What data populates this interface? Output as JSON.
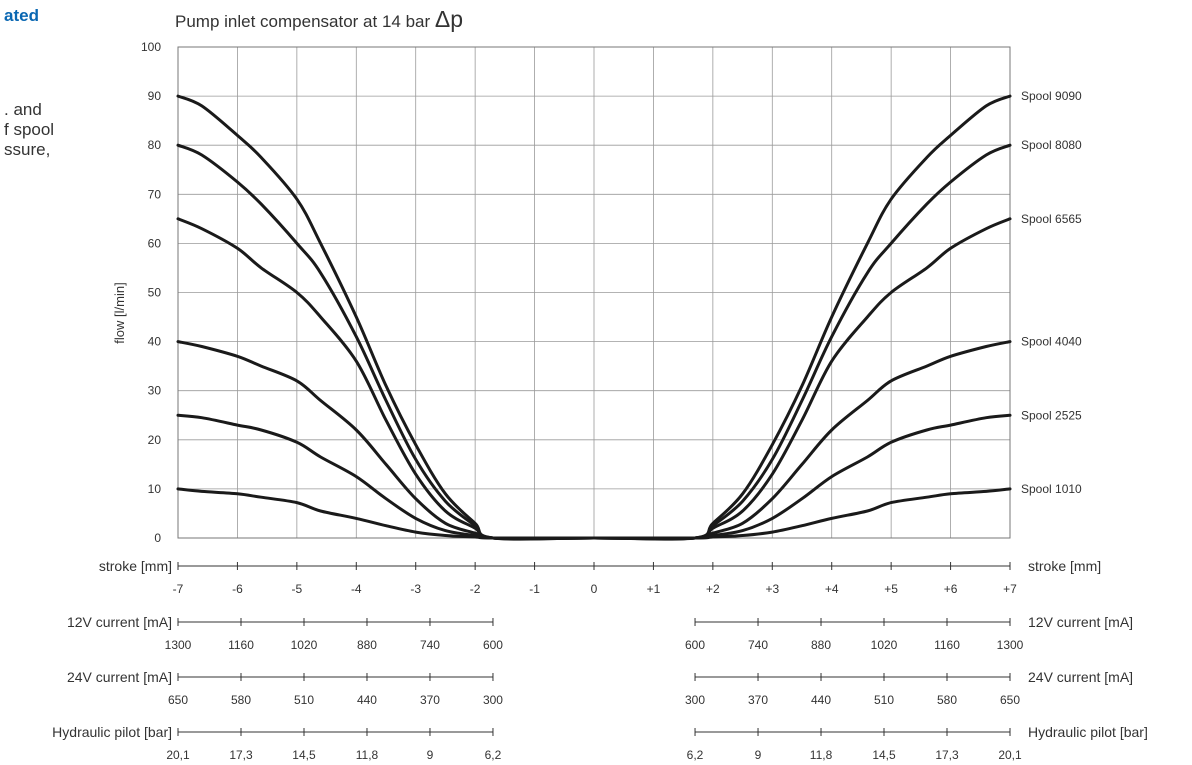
{
  "side_text": {
    "heading": "ated",
    "lines": [
      ". and",
      "f spool",
      "ssure,"
    ]
  },
  "chart_data": {
    "type": "line",
    "title": "Pump inlet compensator at 14 bar",
    "title_symbol": "Δp",
    "ylabel": "flow [l/min]",
    "ylim": [
      0,
      100
    ],
    "yticks": [
      "0",
      "10",
      "20",
      "30",
      "40",
      "50",
      "60",
      "70",
      "80",
      "90",
      "100"
    ],
    "xlim": [
      -7,
      7
    ],
    "grid": true,
    "x": [
      -7,
      -6.6,
      -6,
      -5.6,
      -5,
      -4.6,
      -4,
      -3.5,
      -3,
      -2.5,
      -2,
      -1.7,
      0,
      1.7,
      2,
      2.5,
      3,
      3.5,
      4,
      4.6,
      5,
      5.6,
      6,
      6.6,
      7
    ],
    "series": [
      {
        "name": "Spool 9090",
        "values": [
          90,
          88,
          82,
          77.5,
          69,
          60,
          45,
          31,
          19,
          9,
          3,
          0,
          0,
          0,
          3,
          9,
          19,
          31,
          45,
          60,
          69,
          77.5,
          82,
          88,
          90
        ]
      },
      {
        "name": "Spool 8080",
        "values": [
          80,
          78,
          72.5,
          68,
          60,
          54,
          41,
          28,
          16,
          7.5,
          2.5,
          0,
          0,
          0,
          2.5,
          7.5,
          16,
          28,
          41,
          54,
          60,
          68,
          72.5,
          78,
          80
        ]
      },
      {
        "name": "Spool 6565",
        "values": [
          65,
          63,
          59,
          55,
          50,
          45,
          36,
          24,
          13,
          5.5,
          2,
          0,
          0,
          0,
          2,
          5.5,
          13,
          24,
          36,
          45,
          50,
          55,
          59,
          63,
          65
        ]
      },
      {
        "name": "Spool 4040",
        "values": [
          40,
          39,
          37,
          35,
          32,
          28,
          22,
          15,
          8,
          3,
          1,
          0,
          0,
          0,
          1,
          3,
          8,
          15,
          22,
          28,
          32,
          35,
          37,
          39,
          40
        ]
      },
      {
        "name": "Spool 2525",
        "values": [
          25,
          24.5,
          23,
          22,
          19.5,
          16.5,
          12.5,
          8,
          4,
          1.5,
          0.5,
          0,
          0,
          0,
          0.5,
          1.5,
          4,
          8,
          12.5,
          16.5,
          19.5,
          22,
          23,
          24.5,
          25
        ]
      },
      {
        "name": "Spool 1010",
        "values": [
          10,
          9.5,
          9,
          8.3,
          7.2,
          5.5,
          4,
          2.5,
          1.2,
          0.5,
          0.2,
          0,
          0,
          0,
          0.2,
          0.5,
          1.2,
          2.5,
          4,
          5.5,
          7.2,
          8.3,
          9,
          9.5,
          10
        ]
      }
    ],
    "scales": [
      {
        "label": "stroke [mm]",
        "label_right": "stroke [mm]",
        "ticks": [
          "-7",
          "-6",
          "-5",
          "-4",
          "-3",
          "-2",
          "-1",
          "0",
          "+1",
          "+2",
          "+3",
          "+4",
          "+5",
          "+6",
          "+7"
        ],
        "tick_x": [
          -7,
          -6,
          -5,
          -4,
          -3,
          -2,
          -1,
          0,
          1,
          2,
          3,
          4,
          5,
          6,
          7
        ]
      },
      {
        "label": "12V current [mA]",
        "label_right": "12V current [mA]",
        "left_ticks": [
          "1300",
          "1160",
          "1020",
          "880",
          "740",
          "600"
        ],
        "right_ticks": [
          "600",
          "740",
          "880",
          "1020",
          "1160",
          "1300"
        ]
      },
      {
        "label": "24V current [mA]",
        "label_right": "24V current [mA]",
        "left_ticks": [
          "650",
          "580",
          "510",
          "440",
          "370",
          "300"
        ],
        "right_ticks": [
          "300",
          "370",
          "440",
          "510",
          "580",
          "650"
        ]
      },
      {
        "label": "Hydraulic pilot [bar]",
        "label_right": "Hydraulic pilot [bar]",
        "left_ticks": [
          "20,1",
          "17,3",
          "14,5",
          "11,8",
          "9",
          "6,2"
        ],
        "right_ticks": [
          "6,2",
          "9",
          "11,8",
          "14,5",
          "17,3",
          "20,1"
        ]
      }
    ]
  }
}
